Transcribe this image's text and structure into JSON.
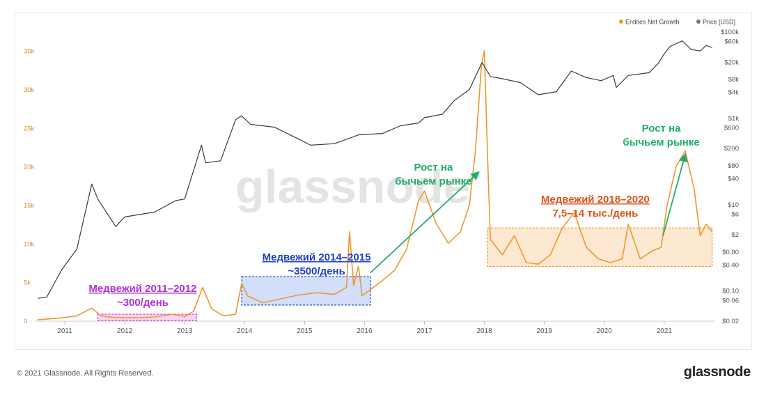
{
  "legend": [
    {
      "label": "Entities Net Growth",
      "color": "#f0962e"
    },
    {
      "label": "Price [USD]",
      "color": "#777777"
    }
  ],
  "watermark": "glassnode",
  "footer": {
    "copyright": "© 2021 Glassnode. All Rights Reserved.",
    "brand": "glassnode"
  },
  "colors": {
    "growth": "#f0962e",
    "price": "#3a3a3a",
    "arrow": "#1fae6a",
    "purple": "#b030d8",
    "blue": "#1e3fc8",
    "red": "#e0531c"
  },
  "annotations": [
    {
      "id": "bear-2011",
      "line1": "Медвежий 2011–2012",
      "line2": "~300/день",
      "color": "purple"
    },
    {
      "id": "bear-2014",
      "line1": "Медвежий 2014–2015",
      "line2": "~3500/день",
      "color": "blue"
    },
    {
      "id": "bull-2017",
      "line1": "Рост на",
      "line2": "бычьем рынке",
      "color": "arrow"
    },
    {
      "id": "bear-2018",
      "line1": "Медвежий 2018–2020",
      "line2": "7,5–14  тыс./день",
      "color": "red"
    },
    {
      "id": "bull-2021",
      "line1": "Рост на",
      "line2": "бычьем рынке",
      "color": "arrow"
    }
  ],
  "chart_data": {
    "type": "line",
    "x_ticks": [
      "2011",
      "2012",
      "2013",
      "2014",
      "2015",
      "2016",
      "2017",
      "2018",
      "2019",
      "2020",
      "2021"
    ],
    "y_left_ticks": [
      "0",
      "5k",
      "10k",
      "15k",
      "20k",
      "25k",
      "30k",
      "35k"
    ],
    "y_left_range": [
      0,
      37500
    ],
    "y_right_ticks": [
      "$0.02",
      "$0.06",
      "$0.10",
      "$0.40",
      "$0.80",
      "$2",
      "$6",
      "$10",
      "$40",
      "$80",
      "$200",
      "$600",
      "$1k",
      "$4k",
      "$8k",
      "$20k",
      "$60k",
      "$100k"
    ],
    "y_right_scale": "log",
    "y_right_range": [
      0.02,
      100000
    ],
    "series": [
      {
        "name": "Entities Net Growth",
        "axis": "left",
        "points": [
          [
            2010.55,
            100
          ],
          [
            2010.9,
            300
          ],
          [
            2011.2,
            600
          ],
          [
            2011.45,
            1600
          ],
          [
            2011.6,
            600
          ],
          [
            2011.8,
            400
          ],
          [
            2012.2,
            350
          ],
          [
            2012.5,
            450
          ],
          [
            2012.8,
            800
          ],
          [
            2013.0,
            500
          ],
          [
            2013.15,
            1200
          ],
          [
            2013.3,
            4300
          ],
          [
            2013.45,
            1500
          ],
          [
            2013.65,
            600
          ],
          [
            2013.85,
            800
          ],
          [
            2013.95,
            4800
          ],
          [
            2014.05,
            3200
          ],
          [
            2014.3,
            2300
          ],
          [
            2014.6,
            2800
          ],
          [
            2014.9,
            3300
          ],
          [
            2015.2,
            3600
          ],
          [
            2015.5,
            3400
          ],
          [
            2015.7,
            4300
          ],
          [
            2015.75,
            11500
          ],
          [
            2015.82,
            4500
          ],
          [
            2015.9,
            7000
          ],
          [
            2015.96,
            3200
          ],
          [
            2016.1,
            4000
          ],
          [
            2016.3,
            5200
          ],
          [
            2016.5,
            6500
          ],
          [
            2016.7,
            9200
          ],
          [
            2016.9,
            15500
          ],
          [
            2017.0,
            16800
          ],
          [
            2017.2,
            12500
          ],
          [
            2017.4,
            10000
          ],
          [
            2017.6,
            11500
          ],
          [
            2017.75,
            15000
          ],
          [
            2017.85,
            22000
          ],
          [
            2017.95,
            33000
          ],
          [
            2018.0,
            35000
          ],
          [
            2018.05,
            22000
          ],
          [
            2018.1,
            10500
          ],
          [
            2018.3,
            8500
          ],
          [
            2018.5,
            11000
          ],
          [
            2018.7,
            7500
          ],
          [
            2018.9,
            7300
          ],
          [
            2019.1,
            8500
          ],
          [
            2019.3,
            12000
          ],
          [
            2019.5,
            14000
          ],
          [
            2019.7,
            9500
          ],
          [
            2019.9,
            8000
          ],
          [
            2020.1,
            7500
          ],
          [
            2020.3,
            8000
          ],
          [
            2020.4,
            12500
          ],
          [
            2020.6,
            8000
          ],
          [
            2020.8,
            9000
          ],
          [
            2020.95,
            9500
          ],
          [
            2021.05,
            15000
          ],
          [
            2021.2,
            20000
          ],
          [
            2021.35,
            22000
          ],
          [
            2021.5,
            17000
          ],
          [
            2021.6,
            11000
          ],
          [
            2021.7,
            12500
          ],
          [
            2021.8,
            11500
          ]
        ]
      },
      {
        "name": "Price [USD]",
        "axis": "right",
        "points": [
          [
            2010.55,
            0.065
          ],
          [
            2010.7,
            0.07
          ],
          [
            2010.95,
            0.3
          ],
          [
            2011.2,
            0.9
          ],
          [
            2011.45,
            29
          ],
          [
            2011.55,
            13
          ],
          [
            2011.85,
            3
          ],
          [
            2012.0,
            5
          ],
          [
            2012.5,
            6.5
          ],
          [
            2012.85,
            12
          ],
          [
            2013.0,
            13
          ],
          [
            2013.28,
            230
          ],
          [
            2013.35,
            90
          ],
          [
            2013.6,
            100
          ],
          [
            2013.85,
            900
          ],
          [
            2013.95,
            1100
          ],
          [
            2014.1,
            700
          ],
          [
            2014.5,
            600
          ],
          [
            2014.9,
            320
          ],
          [
            2015.1,
            230
          ],
          [
            2015.5,
            250
          ],
          [
            2015.9,
            400
          ],
          [
            2016.3,
            430
          ],
          [
            2016.6,
            650
          ],
          [
            2016.9,
            750
          ],
          [
            2017.0,
            1000
          ],
          [
            2017.3,
            1200
          ],
          [
            2017.5,
            2500
          ],
          [
            2017.75,
            4500
          ],
          [
            2017.96,
            19000
          ],
          [
            2018.1,
            9000
          ],
          [
            2018.3,
            8000
          ],
          [
            2018.6,
            6500
          ],
          [
            2018.9,
            3400
          ],
          [
            2019.2,
            4000
          ],
          [
            2019.45,
            12000
          ],
          [
            2019.7,
            8500
          ],
          [
            2019.95,
            7200
          ],
          [
            2020.15,
            9500
          ],
          [
            2020.2,
            5000
          ],
          [
            2020.4,
            9500
          ],
          [
            2020.75,
            11000
          ],
          [
            2020.9,
            18000
          ],
          [
            2021.0,
            30000
          ],
          [
            2021.1,
            45000
          ],
          [
            2021.3,
            60000
          ],
          [
            2021.45,
            38000
          ],
          [
            2021.6,
            35000
          ],
          [
            2021.7,
            47000
          ],
          [
            2021.8,
            42000
          ]
        ]
      }
    ],
    "boxes": [
      {
        "id": "box-2011",
        "x": [
          2011.55,
          2013.2
        ],
        "y": [
          0,
          800
        ],
        "color": "purple"
      },
      {
        "id": "box-2014",
        "x": [
          2013.95,
          2016.1
        ],
        "y": [
          2000,
          5700
        ],
        "color": "blue"
      },
      {
        "id": "box-2018",
        "x": [
          2018.05,
          2021.8
        ],
        "y": [
          7000,
          12000
        ],
        "color": "red"
      }
    ],
    "arrows": [
      {
        "id": "arrow-2017",
        "from": [
          2016.1,
          6200
        ],
        "to": [
          2017.9,
          19200
        ]
      },
      {
        "id": "arrow-2021",
        "from": [
          2020.98,
          11000
        ],
        "to": [
          2021.35,
          21500
        ]
      }
    ]
  }
}
